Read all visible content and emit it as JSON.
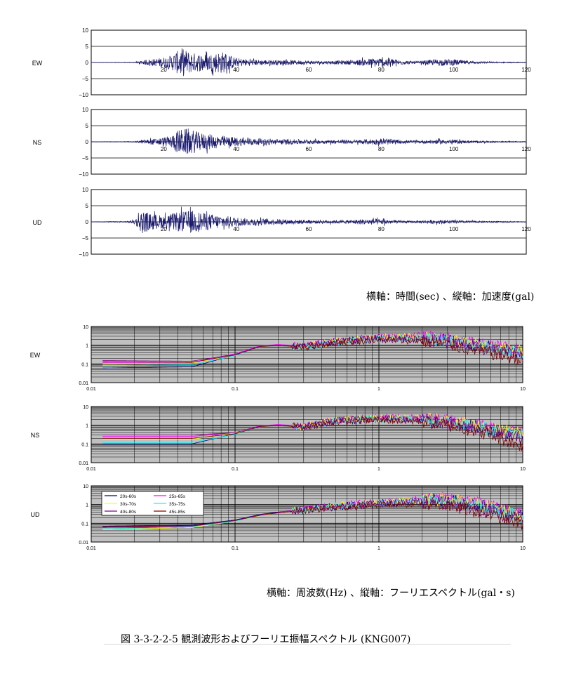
{
  "figure_title": "図 3-3-2-2-5  観測波形およびフーリエ振幅スペクトル (KNG007)",
  "waveform_axis_caption": "横軸：時間(sec)  、縦軸：加速度(gal)",
  "spectrum_axis_caption": "横軸：周波数(Hz)  、縦軸：フーリエスペクトル(gal・s)",
  "colors": {
    "waveform": "#1a1a6e",
    "spectrum_bg": "#c0c0c0",
    "series": [
      "#00007a",
      "#ff00ff",
      "#ffff00",
      "#00ffff",
      "#800080",
      "#800000"
    ]
  },
  "chart_data": [
    {
      "type": "line",
      "label": "EW",
      "x_range": [
        0,
        120
      ],
      "ylim": [
        -10,
        10
      ],
      "xticks": [
        20,
        40,
        60,
        80,
        100,
        120
      ],
      "yticks": [
        10,
        5,
        0,
        -5,
        -10
      ],
      "ytick_labels": [
        "10",
        "5",
        "0",
        "−5",
        "−10"
      ],
      "envelope": {
        "x": [
          0,
          12,
          14,
          18,
          22,
          25,
          28,
          32,
          36,
          40,
          45,
          55,
          65,
          72,
          78,
          82,
          86,
          90,
          95,
          100,
          104,
          108,
          112,
          120
        ],
        "amp": [
          0.05,
          0.1,
          0.6,
          1.2,
          2.2,
          4.5,
          3.0,
          2.6,
          3.5,
          1.4,
          0.9,
          0.7,
          0.5,
          0.7,
          1.4,
          1.5,
          0.6,
          0.4,
          1.0,
          1.0,
          0.5,
          0.3,
          0.2,
          0.1
        ]
      }
    },
    {
      "type": "line",
      "label": "NS",
      "x_range": [
        0,
        120
      ],
      "ylim": [
        -10,
        10
      ],
      "xticks": [
        20,
        40,
        60,
        80,
        100,
        120
      ],
      "yticks": [
        10,
        5,
        0,
        -5,
        -10
      ],
      "ytick_labels": [
        "10",
        "5",
        "0",
        "−5",
        "−10"
      ],
      "envelope": {
        "x": [
          0,
          12,
          14,
          18,
          22,
          24,
          27,
          30,
          34,
          38,
          45,
          55,
          65,
          72,
          78,
          82,
          86,
          90,
          95,
          100,
          104,
          108,
          112,
          120
        ],
        "amp": [
          0.05,
          0.1,
          0.6,
          1.0,
          1.8,
          3.8,
          4.2,
          2.8,
          2.2,
          1.6,
          1.0,
          0.8,
          0.6,
          0.6,
          0.9,
          0.9,
          0.5,
          0.4,
          0.7,
          0.7,
          0.4,
          0.3,
          0.2,
          0.1
        ]
      }
    },
    {
      "type": "line",
      "label": "UD",
      "x_range": [
        0,
        120
      ],
      "ylim": [
        -10,
        10
      ],
      "xticks": [
        20,
        40,
        60,
        80,
        100,
        120
      ],
      "yticks": [
        10,
        5,
        0,
        -5,
        -10
      ],
      "ytick_labels": [
        "10",
        "5",
        "0",
        "−5",
        "−10"
      ],
      "envelope": {
        "x": [
          0,
          10,
          12,
          14,
          16,
          20,
          24,
          28,
          32,
          36,
          42,
          50,
          60,
          70,
          76,
          80,
          84,
          88,
          94,
          98,
          102,
          106,
          112,
          120
        ],
        "amp": [
          0.05,
          0.2,
          0.8,
          3.5,
          2.6,
          2.0,
          3.0,
          3.6,
          2.6,
          2.0,
          1.2,
          0.9,
          0.6,
          0.5,
          0.9,
          0.9,
          0.5,
          0.3,
          0.6,
          0.6,
          0.4,
          0.3,
          0.2,
          0.1
        ]
      }
    },
    {
      "type": "line",
      "label": "EW",
      "xscale": "log",
      "yscale": "log",
      "xlim": [
        0.01,
        10
      ],
      "ylim": [
        0.01,
        10
      ],
      "xtick_labels": [
        "0.01",
        "0.1",
        "1",
        "10"
      ],
      "ytick_labels": [
        "10",
        "1",
        "0.1",
        "0.01"
      ],
      "grid": true,
      "series": [
        {
          "name": "20s-60s",
          "f": [
            0.012,
            0.05,
            0.1,
            0.15,
            0.2,
            0.3,
            0.5,
            1,
            2,
            3,
            5,
            7,
            10
          ],
          "v": [
            0.06,
            0.07,
            0.3,
            0.9,
            1.0,
            0.8,
            1.6,
            2.5,
            2.5,
            1.8,
            1.0,
            0.6,
            0.4
          ]
        },
        {
          "name": "25s-65s",
          "f": [
            0.012,
            0.05,
            0.1,
            0.15,
            0.2,
            0.3,
            0.5,
            1,
            2,
            3,
            5,
            7,
            10
          ],
          "v": [
            0.12,
            0.12,
            0.35,
            0.95,
            1.1,
            0.9,
            1.7,
            2.8,
            3.0,
            2.2,
            1.2,
            0.8,
            0.5
          ]
        },
        {
          "name": "30s-70s",
          "f": [
            0.012,
            0.05,
            0.1,
            0.15,
            0.2,
            0.3,
            0.5,
            1,
            2,
            3,
            5,
            7,
            10
          ],
          "v": [
            0.1,
            0.11,
            0.3,
            0.9,
            1.0,
            0.85,
            1.6,
            2.6,
            2.7,
            2.0,
            1.0,
            0.7,
            0.45
          ]
        },
        {
          "name": "35s-75s",
          "f": [
            0.012,
            0.05,
            0.1,
            0.15,
            0.2,
            0.3,
            0.5,
            1,
            2,
            3,
            5,
            7,
            10
          ],
          "v": [
            0.08,
            0.09,
            0.28,
            0.85,
            0.95,
            0.8,
            1.5,
            2.4,
            2.3,
            1.6,
            0.9,
            0.55,
            0.35
          ]
        },
        {
          "name": "40s-80s",
          "f": [
            0.012,
            0.05,
            0.1,
            0.15,
            0.2,
            0.3,
            0.5,
            1,
            2,
            3,
            5,
            7,
            10
          ],
          "v": [
            0.15,
            0.14,
            0.32,
            0.9,
            1.0,
            0.85,
            1.5,
            2.2,
            2.0,
            1.4,
            0.7,
            0.45,
            0.3
          ]
        },
        {
          "name": "45s-85s",
          "f": [
            0.012,
            0.05,
            0.1,
            0.15,
            0.2,
            0.3,
            0.5,
            1,
            2,
            3,
            5,
            7,
            10
          ],
          "v": [
            0.13,
            0.12,
            0.3,
            0.85,
            0.95,
            0.8,
            1.4,
            2.0,
            1.7,
            1.1,
            0.5,
            0.28,
            0.18
          ]
        }
      ]
    },
    {
      "type": "line",
      "label": "NS",
      "xscale": "log",
      "yscale": "log",
      "xlim": [
        0.01,
        10
      ],
      "ylim": [
        0.01,
        10
      ],
      "xtick_labels": [
        "0.01",
        "0.1",
        "1",
        "10"
      ],
      "ytick_labels": [
        "10",
        "1",
        "0.1",
        "0.01"
      ],
      "grid": true,
      "series": [
        {
          "name": "20s-60s",
          "f": [
            0.012,
            0.05,
            0.1,
            0.15,
            0.2,
            0.3,
            0.5,
            1,
            2,
            3,
            5,
            7,
            10
          ],
          "v": [
            0.1,
            0.1,
            0.35,
            0.9,
            1.0,
            0.8,
            1.7,
            2.3,
            2.0,
            1.5,
            0.8,
            0.45,
            0.3
          ]
        },
        {
          "name": "25s-65s",
          "f": [
            0.012,
            0.05,
            0.1,
            0.15,
            0.2,
            0.3,
            0.5,
            1,
            2,
            3,
            5,
            7,
            10
          ],
          "v": [
            0.25,
            0.25,
            0.4,
            0.95,
            1.1,
            0.9,
            1.9,
            2.6,
            2.5,
            1.9,
            1.1,
            0.6,
            0.4
          ]
        },
        {
          "name": "30s-70s",
          "f": [
            0.012,
            0.05,
            0.1,
            0.15,
            0.2,
            0.3,
            0.5,
            1,
            2,
            3,
            5,
            7,
            10
          ],
          "v": [
            0.18,
            0.18,
            0.38,
            0.9,
            1.0,
            0.85,
            1.8,
            2.4,
            2.3,
            1.7,
            0.95,
            0.55,
            0.35
          ]
        },
        {
          "name": "35s-75s",
          "f": [
            0.012,
            0.05,
            0.1,
            0.15,
            0.2,
            0.3,
            0.5,
            1,
            2,
            3,
            5,
            7,
            10
          ],
          "v": [
            0.12,
            0.12,
            0.32,
            0.85,
            0.95,
            0.8,
            1.7,
            2.2,
            2.0,
            1.4,
            0.8,
            0.45,
            0.28
          ]
        },
        {
          "name": "40s-80s",
          "f": [
            0.012,
            0.05,
            0.1,
            0.15,
            0.2,
            0.3,
            0.5,
            1,
            2,
            3,
            5,
            7,
            10
          ],
          "v": [
            0.3,
            0.3,
            0.4,
            0.9,
            1.0,
            0.85,
            1.7,
            2.1,
            1.8,
            1.2,
            0.6,
            0.35,
            0.2
          ]
        },
        {
          "name": "45s-85s",
          "f": [
            0.012,
            0.05,
            0.1,
            0.15,
            0.2,
            0.3,
            0.5,
            1,
            2,
            3,
            5,
            7,
            10
          ],
          "v": [
            0.2,
            0.2,
            0.35,
            0.85,
            0.95,
            0.8,
            1.6,
            1.9,
            1.6,
            1.0,
            0.45,
            0.2,
            0.08
          ]
        }
      ]
    },
    {
      "type": "line",
      "label": "UD",
      "xscale": "log",
      "yscale": "log",
      "xlim": [
        0.01,
        10
      ],
      "ylim": [
        0.01,
        10
      ],
      "xtick_labels": [
        "0.01",
        "0.1",
        "1",
        "10"
      ],
      "ytick_labels": [
        "10",
        "1",
        "0.1",
        "0.01"
      ],
      "grid": true,
      "legend_position": "top-left",
      "series": [
        {
          "name": "20s-60s",
          "f": [
            0.012,
            0.05,
            0.1,
            0.15,
            0.2,
            0.3,
            0.5,
            1,
            2,
            3,
            5,
            7,
            10
          ],
          "v": [
            0.07,
            0.08,
            0.15,
            0.3,
            0.4,
            0.55,
            0.8,
            1.2,
            1.6,
            1.8,
            0.9,
            0.55,
            0.25
          ]
        },
        {
          "name": "25s-65s",
          "f": [
            0.012,
            0.05,
            0.1,
            0.15,
            0.2,
            0.3,
            0.5,
            1,
            2,
            3,
            5,
            7,
            10
          ],
          "v": [
            0.06,
            0.07,
            0.14,
            0.28,
            0.38,
            0.6,
            0.9,
            1.4,
            1.9,
            2.2,
            1.1,
            0.7,
            0.3
          ]
        },
        {
          "name": "30s-70s",
          "f": [
            0.012,
            0.05,
            0.1,
            0.15,
            0.2,
            0.3,
            0.5,
            1,
            2,
            3,
            5,
            7,
            10
          ],
          "v": [
            0.045,
            0.06,
            0.13,
            0.26,
            0.36,
            0.55,
            0.85,
            1.3,
            1.7,
            2.0,
            1.0,
            0.6,
            0.28
          ]
        },
        {
          "name": "35s-75s",
          "f": [
            0.012,
            0.05,
            0.1,
            0.15,
            0.2,
            0.3,
            0.5,
            1,
            2,
            3,
            5,
            7,
            10
          ],
          "v": [
            0.05,
            0.065,
            0.13,
            0.27,
            0.37,
            0.5,
            0.8,
            1.2,
            1.5,
            1.6,
            0.8,
            0.45,
            0.2
          ]
        },
        {
          "name": "40s-80s",
          "f": [
            0.012,
            0.05,
            0.1,
            0.15,
            0.2,
            0.3,
            0.5,
            1,
            2,
            3,
            5,
            7,
            10
          ],
          "v": [
            0.06,
            0.07,
            0.14,
            0.28,
            0.38,
            0.5,
            0.75,
            1.1,
            1.3,
            1.2,
            0.55,
            0.3,
            0.15
          ]
        },
        {
          "name": "45s-85s",
          "f": [
            0.012,
            0.05,
            0.1,
            0.15,
            0.2,
            0.3,
            0.5,
            1,
            2,
            3,
            5,
            7,
            10
          ],
          "v": [
            0.065,
            0.075,
            0.14,
            0.27,
            0.36,
            0.48,
            0.7,
            1.0,
            1.1,
            0.9,
            0.4,
            0.2,
            0.09
          ]
        }
      ]
    }
  ]
}
